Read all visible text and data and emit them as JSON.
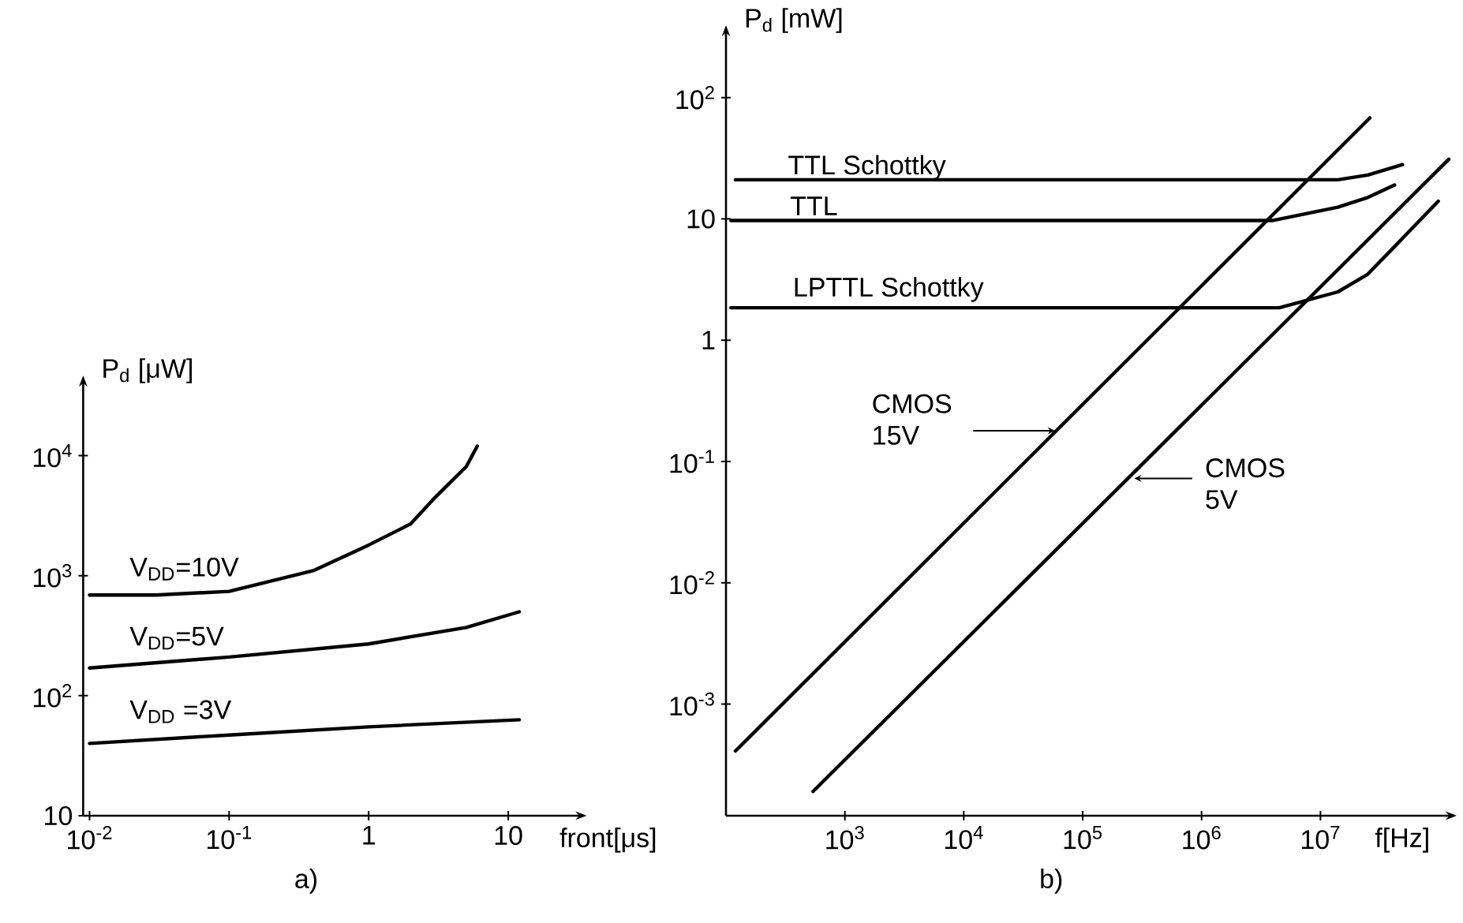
{
  "chart_data": [
    {
      "type": "line",
      "title": "a)",
      "xlabel": "front[μs]",
      "ylabel": "P$_{d}$  [μW]",
      "log": "xy",
      "marker": "none",
      "line_style": "solid",
      "xlim": [
        0.009,
        32
      ],
      "ylim": [
        10,
        40000
      ],
      "xticks": [
        {
          "value": 0.01,
          "label": "10$^{-2}$"
        },
        {
          "value": 0.1,
          "label": "10$^{-1}$"
        },
        1,
        10
      ],
      "yticks": [
        10,
        {
          "value": 100,
          "label": "10$^{2}$"
        },
        {
          "value": 1000,
          "label": "10$^{3}$"
        },
        {
          "value": 10000,
          "label": "10$^{4}$"
        }
      ],
      "series": [
        {
          "name": "V$_{DD}$=10V",
          "color": "#000000",
          "x": [
            0.01,
            0.03,
            0.1,
            0.4,
            1,
            2,
            3,
            5,
            6
          ],
          "values": [
            690,
            690,
            740,
            1100,
            1800,
            2700,
            4500,
            8100,
            12000
          ]
        },
        {
          "name": "V$_{DD}$=5V",
          "color": "#000000",
          "x": [
            0.01,
            0.1,
            1,
            5,
            12
          ],
          "values": [
            170,
            210,
            270,
            370,
            500
          ]
        },
        {
          "name": "V$_{DD}$ =3V",
          "color": "#000000",
          "x": [
            0.01,
            0.1,
            1,
            12
          ],
          "values": [
            40,
            47,
            55,
            63
          ]
        }
      ]
    },
    {
      "type": "line",
      "title": "b)",
      "xlabel": "f[Hz]",
      "ylabel": "P$_{d}$ [mW]",
      "log": "xy",
      "marker": "none",
      "line_style": "solid",
      "xlim": [
        100,
        120000000
      ],
      "ylim": [
        0.00012,
        340
      ],
      "xticks": [
        {
          "value": 1000,
          "label": "10$^{3}$"
        },
        {
          "value": 10000,
          "label": "10$^{4}$"
        },
        {
          "value": 100000,
          "label": "10$^{5}$"
        },
        {
          "value": 1000000,
          "label": "10$^{6}$"
        },
        {
          "value": 10000000,
          "label": "10$^{7}$"
        }
      ],
      "yticks": [
        {
          "value": 0.001,
          "label": "10$^{-3}$"
        },
        {
          "value": 0.01,
          "label": "10$^{-2}$"
        },
        {
          "value": 0.1,
          "label": "10$^{-1}$"
        },
        1,
        10,
        {
          "value": 100,
          "label": "10$^{2}$"
        }
      ],
      "series": [
        {
          "name": "TTL Schottky",
          "color": "#000000",
          "x": [
            120,
            14000000,
            25000000,
            49000000
          ],
          "values": [
            21,
            21,
            23,
            28
          ]
        },
        {
          "name": "TTL",
          "color": "#000000",
          "x": [
            110,
            4000000,
            14000000,
            25000000,
            42000000
          ],
          "values": [
            9.7,
            9.7,
            12.5,
            15,
            19
          ]
        },
        {
          "name": "LPTTL Schottky",
          "color": "#000000",
          "x": [
            110,
            4500000,
            14000000,
            25000000,
            44000000,
            98000000
          ],
          "values": [
            1.85,
            1.85,
            2.5,
            3.5,
            6.2,
            14
          ]
        },
        {
          "name": "CMOS 15V",
          "color": "#000000",
          "x": [
            120,
            26000000
          ],
          "values": [
            0.00041,
            68
          ]
        },
        {
          "name": "CMOS 5V",
          "color": "#000000",
          "x": [
            540,
            120000000
          ],
          "values": [
            0.00019,
            31
          ]
        }
      ]
    }
  ]
}
